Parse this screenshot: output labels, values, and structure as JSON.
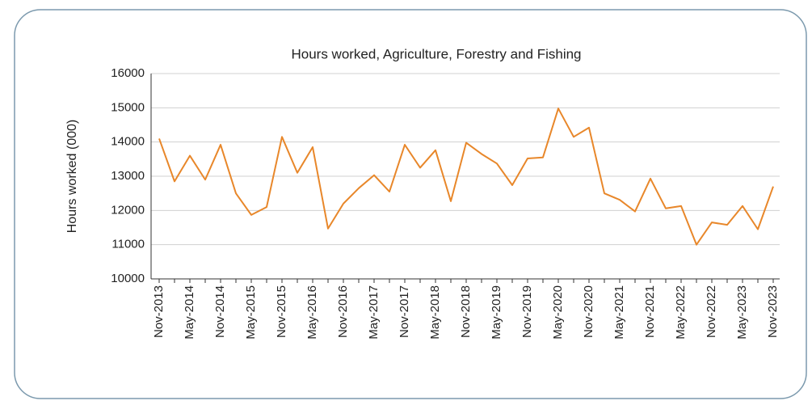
{
  "chart_data": {
    "type": "line",
    "title": "Hours worked, Agriculture, Forestry and Fishing",
    "y_label": "Hours worked (000)",
    "categories": [
      "Nov-2013",
      null,
      "May-2014",
      null,
      "Nov-2014",
      null,
      "May-2015",
      null,
      "Nov-2015",
      null,
      "May-2016",
      null,
      "Nov-2016",
      null,
      "May-2017",
      null,
      "Nov-2017",
      null,
      "May-2018",
      null,
      "Nov-2018",
      null,
      "May-2019",
      null,
      "Nov-2019",
      null,
      "May-2020",
      null,
      "Nov-2020",
      null,
      "May-2021",
      null,
      "Nov-2021",
      null,
      "May-2022",
      null,
      "Nov-2022",
      null,
      "May-2023",
      null,
      "Nov-2023"
    ],
    "values": [
      14100,
      12850,
      13600,
      12900,
      13920,
      12500,
      11870,
      12100,
      14150,
      13100,
      13850,
      11470,
      12200,
      12650,
      13030,
      12550,
      13920,
      13250,
      13760,
      12270,
      13980,
      13650,
      13370,
      12740,
      13520,
      13550,
      14980,
      14150,
      14420,
      12500,
      12310,
      11970,
      12930,
      12060,
      12130,
      11000,
      11650,
      11580,
      12130,
      11450,
      12700
    ],
    "color": "#e8872a",
    "ylim": [
      10000,
      16000
    ],
    "yticks": [
      10000,
      11000,
      12000,
      13000,
      14000,
      15000,
      16000
    ],
    "grid": true
  }
}
